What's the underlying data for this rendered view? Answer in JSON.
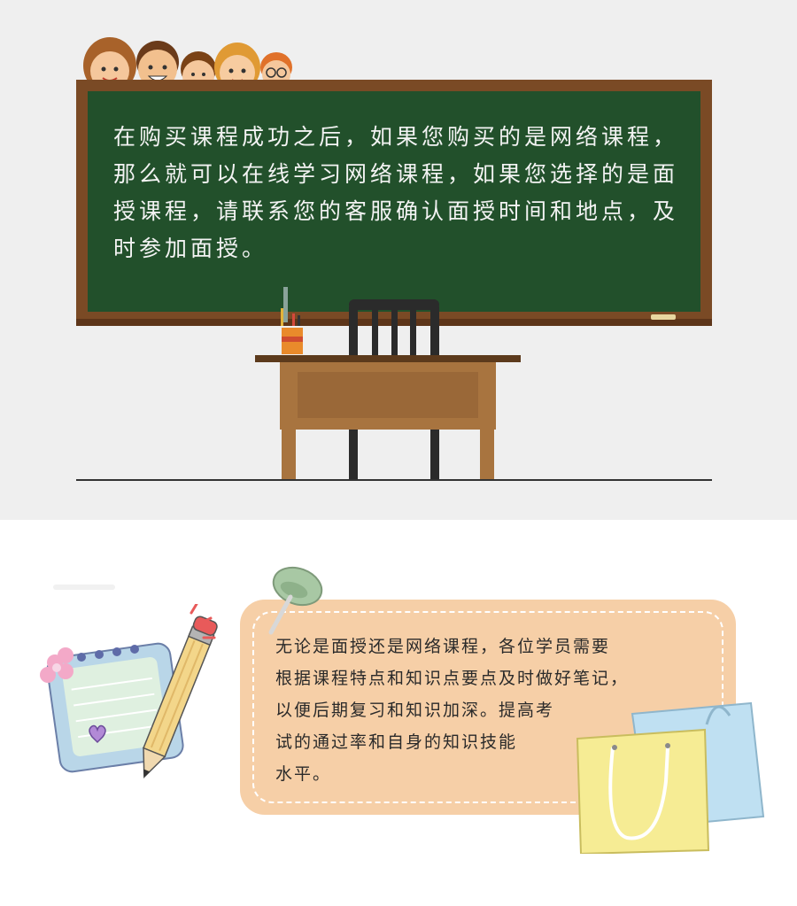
{
  "blackboard": {
    "text": "在购买课程成功之后，如果您购买的是网络课程，那么就可以在线学习网络课程，如果您选择的是面授课程，请联系您的客服确认面授时间和地点，及时参加面授。"
  },
  "note": {
    "lines": [
      "无论是面授还是网络课程，各位学员需要",
      "根据课程特点和知识点要点及时做好笔记，",
      "以便后期复习和知识加深。提高考",
      "试的通过率和自身的知识技能",
      "水平。"
    ]
  }
}
